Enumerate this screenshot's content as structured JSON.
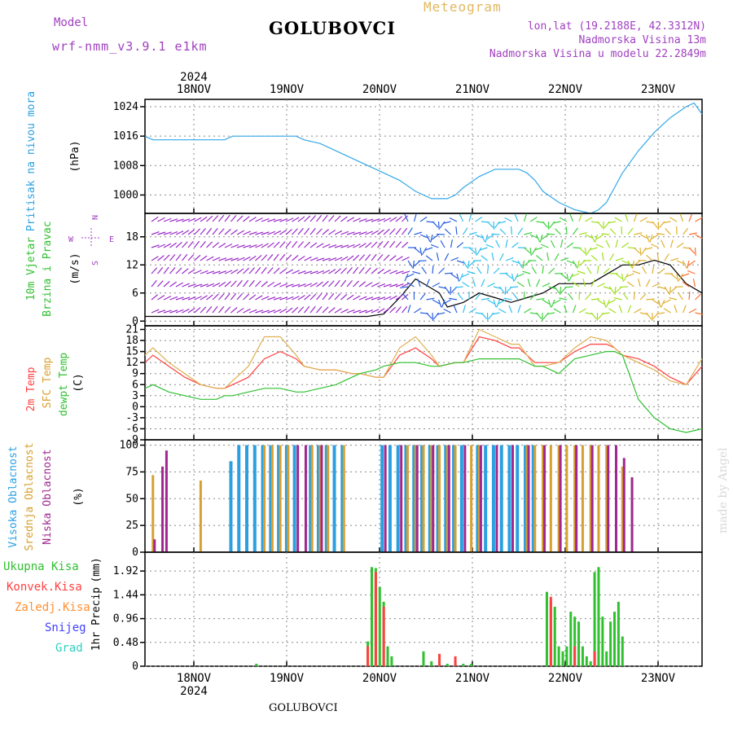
{
  "header": {
    "title": "GOLUBOVCI",
    "meteogram": "Meteogram",
    "model_label": "Model",
    "model_name": "wrf-nmm_v3.9.1 e1km",
    "lonlat": "lon,lat (19.2188E, 42.3312N)",
    "elevation": "Nadmorska Visina 13m",
    "model_elevation": "Nadmorska Visina u modelu 22.2849m",
    "footer": "GOLUBOVCI",
    "watermark": "made by Angel"
  },
  "time_axis": {
    "year": "2024",
    "days": [
      "18NOV",
      "19NOV",
      "20NOV",
      "21NOV",
      "22NOV",
      "23NOV"
    ]
  },
  "chart_data": [
    {
      "type": "line",
      "ylabel": [
        "Pritisak na nivou mora",
        "(hPa)"
      ],
      "ylim": [
        995,
        1026
      ],
      "yticks": [
        1000,
        1008,
        1016,
        1024
      ],
      "colors": [
        "#33a8e8"
      ],
      "series": [
        {
          "x": [
            0,
            0.1,
            0.3,
            0.5,
            0.7,
            0.9,
            1.0,
            1.1,
            1.3,
            1.5,
            1.7,
            1.9,
            2.0,
            2.2,
            2.4,
            2.6,
            2.8,
            2.9,
            3.0,
            3.2,
            3.4,
            3.6,
            3.8,
            3.9,
            4.0,
            4.2,
            4.4,
            4.6,
            4.7,
            4.8,
            4.9,
            5.0,
            5.2,
            5.4,
            5.6,
            5.7,
            5.8,
            5.9,
            6.0
          ],
          "y": [
            1016,
            1015,
            1015,
            1015,
            1015,
            1015,
            1015,
            1016,
            1016,
            1016,
            1016,
            1016,
            1015,
            1014,
            1012,
            1010,
            1008,
            1007,
            1006,
            1004,
            1001,
            999,
            999,
            1000,
            1002,
            1005,
            1007,
            1007,
            1007,
            1006,
            1004,
            1001,
            998,
            996,
            995,
            996,
            998,
            1002,
            1006
          ]
        },
        {
          "x": [
            6,
            6.2,
            6.4,
            6.6,
            6.8,
            6.9,
            7.0
          ],
          "y": [
            1006,
            1012,
            1017,
            1021,
            1024,
            1025,
            1022
          ]
        }
      ]
    },
    {
      "type": "line",
      "ylabel": [
        "10m Vjetar",
        "Brzina i Pravac",
        "(m/s)"
      ],
      "ylim": [
        -1,
        23
      ],
      "yticks": [
        0,
        6,
        12,
        18
      ],
      "colors": [
        "#000000",
        "#ff3030"
      ],
      "series": [
        {
          "x": [
            0,
            0.5,
            1,
            1.5,
            2,
            2.5,
            2.8,
            3.0,
            3.2,
            3.4,
            3.6,
            3.7,
            3.8,
            4.0,
            4.2,
            4.4,
            4.6,
            4.8,
            5.0,
            5.2,
            5.4,
            5.6,
            5.8,
            6.0,
            6.2,
            6.4,
            6.6,
            6.8,
            7.0
          ],
          "y": [
            1,
            1,
            1,
            1,
            1,
            1,
            1,
            1.5,
            5,
            9,
            7,
            6,
            3,
            4,
            6,
            5,
            4,
            5,
            6,
            8,
            8,
            8,
            10,
            12,
            12,
            13,
            12,
            8,
            6
          ]
        }
      ]
    },
    {
      "type": "line",
      "ylabel": [
        "2m Temp",
        "SFC Temp",
        "dewpt Temp",
        "(C)"
      ],
      "ylim": [
        -9,
        22
      ],
      "yticks": [
        -9,
        -6,
        -3,
        0,
        3,
        6,
        9,
        12,
        15,
        18,
        21
      ],
      "colors": [
        "#ff4040",
        "#e0b050",
        "#30c030"
      ],
      "series": [
        {
          "name": "2m Temp",
          "x": [
            0,
            0.1,
            0.3,
            0.5,
            0.7,
            0.9,
            1.0,
            1.1,
            1.3,
            1.5,
            1.7,
            1.9,
            2.0,
            2.2,
            2.4,
            2.6,
            2.7,
            2.9,
            3.0,
            3.2,
            3.4,
            3.6,
            3.7,
            3.9,
            4.0,
            4.2,
            4.4,
            4.6,
            4.7,
            4.9,
            5.0,
            5.2,
            5.4,
            5.6,
            5.8,
            5.9,
            6.0,
            6.2,
            6.4,
            6.6,
            6.8,
            7.0
          ],
          "y": [
            12,
            14,
            11,
            8,
            6,
            5,
            5,
            6,
            8,
            13,
            15,
            13,
            11,
            10,
            10,
            9,
            9,
            8,
            8,
            14,
            16,
            13,
            11,
            12,
            12,
            19,
            18,
            16,
            16,
            12,
            12,
            12,
            15,
            17,
            17,
            16,
            14,
            13,
            11,
            8,
            6,
            11
          ]
        },
        {
          "name": "SFC Temp",
          "x": [
            0,
            0.1,
            0.3,
            0.5,
            0.7,
            0.9,
            1.0,
            1.1,
            1.3,
            1.5,
            1.7,
            1.9,
            2.0,
            2.2,
            2.4,
            2.6,
            2.7,
            2.9,
            3.0,
            3.2,
            3.4,
            3.6,
            3.7,
            3.9,
            4.0,
            4.2,
            4.4,
            4.6,
            4.7,
            4.9,
            5.0,
            5.2,
            5.4,
            5.6,
            5.8,
            5.9,
            6.0,
            6.2,
            6.4,
            6.6,
            6.8,
            7.0
          ],
          "y": [
            14,
            16,
            12,
            9,
            6,
            5,
            5,
            7,
            11,
            19,
            19,
            14,
            11,
            10,
            10,
            9,
            9,
            8,
            8,
            16,
            19,
            14,
            11,
            12,
            12,
            21,
            19,
            17,
            17,
            11,
            11,
            12,
            16,
            19,
            18,
            16,
            14,
            12,
            10,
            7,
            6,
            13
          ]
        },
        {
          "name": "dewpt Temp",
          "x": [
            0,
            0.1,
            0.3,
            0.5,
            0.7,
            0.9,
            1.0,
            1.1,
            1.3,
            1.5,
            1.7,
            1.9,
            2.0,
            2.2,
            2.4,
            2.6,
            2.7,
            2.9,
            3.0,
            3.2,
            3.4,
            3.6,
            3.7,
            3.9,
            4.0,
            4.2,
            4.4,
            4.6,
            4.7,
            4.9,
            5.0,
            5.2,
            5.4,
            5.6,
            5.8,
            5.9,
            6.0,
            6.2,
            6.4,
            6.6,
            6.8,
            7.0
          ],
          "y": [
            5,
            6,
            4,
            3,
            2,
            2,
            3,
            3,
            4,
            5,
            5,
            4,
            4,
            5,
            6,
            8,
            9,
            10,
            11,
            12,
            12,
            11,
            11,
            12,
            12,
            13,
            13,
            13,
            13,
            11,
            11,
            9,
            13,
            14,
            15,
            15,
            14,
            2,
            -3,
            -6,
            -7,
            -6
          ]
        }
      ]
    },
    {
      "type": "bar",
      "ylabel": [
        "Visoka Oblacnost",
        "Srednja Oblacnost",
        "Niska Oblacnost",
        "(%)"
      ],
      "ylim": [
        0,
        105
      ],
      "yticks": [
        0,
        25,
        50,
        75,
        100
      ],
      "colors": [
        "#2aa0e0",
        "#d8a030",
        "#a02890"
      ],
      "series": [
        {
          "name": "Visoka Oblacnost",
          "x": [
            1.1,
            1.2,
            1.3,
            1.4,
            1.5,
            1.6,
            1.7,
            1.8,
            1.9,
            2.1,
            2.2,
            2.3,
            2.4,
            2.5,
            3.0,
            3.1,
            3.2,
            3.3,
            3.4,
            3.5,
            3.6,
            3.7,
            3.8,
            3.9,
            4.0,
            4.2,
            4.3,
            4.4,
            4.5,
            4.6,
            4.7,
            4.8,
            4.9
          ],
          "y": [
            85,
            100,
            100,
            100,
            100,
            100,
            100,
            100,
            100,
            100,
            100,
            100,
            100,
            100,
            100,
            100,
            100,
            100,
            100,
            100,
            100,
            100,
            100,
            100,
            100,
            100,
            100,
            100,
            100,
            100,
            100,
            100,
            100
          ]
        },
        {
          "name": "Srednja Oblacnost",
          "x": [
            0.1,
            0.7,
            1.5,
            1.6,
            1.7,
            1.8,
            2.1,
            2.2,
            2.3,
            2.5,
            3.3,
            3.4,
            3.5,
            3.6,
            3.7,
            3.8,
            3.9,
            4.1,
            4.2,
            4.8,
            4.9,
            5.0,
            5.1,
            5.2,
            5.3,
            5.4,
            5.5,
            5.6,
            5.7,
            5.8,
            6.0
          ],
          "y": [
            72,
            67,
            100,
            100,
            100,
            100,
            100,
            100,
            100,
            100,
            100,
            100,
            100,
            100,
            100,
            100,
            100,
            100,
            100,
            100,
            100,
            100,
            100,
            100,
            100,
            100,
            100,
            100,
            100,
            100,
            80
          ]
        },
        {
          "name": "Niska Oblacnost",
          "x": [
            0.1,
            0.2,
            0.25,
            1.9,
            2.0,
            2.2,
            3.0,
            3.2,
            3.4,
            3.6,
            3.8,
            4.0,
            4.2,
            4.4,
            4.6,
            4.8,
            5.0,
            5.2,
            5.4,
            5.6,
            5.8,
            5.9,
            6.0,
            6.1
          ],
          "y": [
            12,
            80,
            95,
            100,
            100,
            100,
            100,
            100,
            100,
            100,
            100,
            100,
            100,
            100,
            100,
            100,
            100,
            100,
            100,
            100,
            100,
            100,
            88,
            70
          ]
        }
      ]
    },
    {
      "type": "bar",
      "ylabel": [
        "Ukupna Kisa",
        "Konvek.Kisa",
        "Zaledj.Kisa",
        "Snijeg",
        "Grad",
        "1hr Precip",
        "(mm)"
      ],
      "ylim": [
        0,
        2.3
      ],
      "yticks": [
        0,
        0.48,
        0.96,
        1.44,
        1.92
      ],
      "colors": [
        "#30c030",
        "#ff4040",
        "#ff9030",
        "#4040ff",
        "#30d0c0"
      ],
      "series": [
        {
          "name": "Ukupna Kisa",
          "x": [
            1.4,
            2.8,
            2.85,
            2.9,
            2.95,
            3.0,
            3.05,
            3.1,
            3.5,
            3.6,
            3.7,
            3.8,
            3.9,
            4.0,
            4.1,
            5.05,
            5.1,
            5.15,
            5.2,
            5.25,
            5.3,
            5.35,
            5.4,
            5.45,
            5.5,
            5.55,
            5.6,
            5.65,
            5.7,
            5.75,
            5.8,
            5.85,
            5.9,
            5.95,
            6.0
          ],
          "y": [
            0.05,
            0.5,
            2.0,
            1.98,
            1.6,
            1.3,
            0.4,
            0.2,
            0.3,
            0.1,
            0.15,
            0.05,
            0.1,
            0.05,
            0.05,
            1.5,
            1.3,
            1.2,
            0.4,
            0.3,
            0.4,
            1.1,
            1.0,
            0.9,
            0.4,
            0.2,
            0.1,
            1.9,
            2.0,
            1.0,
            0.3,
            0.9,
            1.1,
            1.3,
            0.6
          ]
        },
        {
          "name": "Konvek.Kisa",
          "x": [
            2.8,
            2.9,
            3.0,
            3.7,
            3.9,
            5.1,
            5.4,
            5.65
          ],
          "y": [
            0.4,
            1.9,
            1.2,
            0.25,
            0.2,
            1.4,
            0.4,
            0.3
          ]
        },
        {
          "name": "Zaledj.Kisa",
          "x": [],
          "y": []
        },
        {
          "name": "Snijeg",
          "x": [],
          "y": []
        },
        {
          "name": "Grad",
          "x": [],
          "y": []
        }
      ]
    }
  ]
}
